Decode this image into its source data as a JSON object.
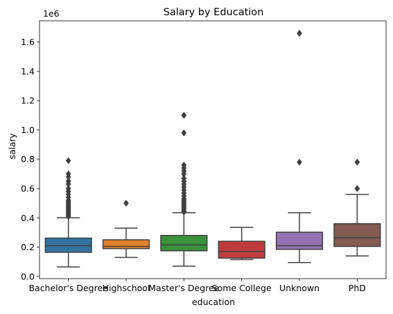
{
  "chart_data": {
    "type": "box",
    "title": "Salary by Education",
    "xlabel": "education",
    "ylabel": "salary",
    "y_offset_label": "1e6",
    "ylim": [
      -0.015,
      1.745
    ],
    "yticks": [
      0.0,
      0.2,
      0.4,
      0.6,
      0.8,
      1.0,
      1.2,
      1.4,
      1.6
    ],
    "ytick_labels": [
      "0.0",
      "0.2",
      "0.4",
      "0.6",
      "0.8",
      "1.0",
      "1.2",
      "1.4",
      "1.6"
    ],
    "grid": false,
    "categories": [
      "Bachelor's Degree",
      "Highschool",
      "Master's Degree",
      "Some College",
      "Unknown",
      "PhD"
    ],
    "colors": [
      "#3274a1",
      "#e1812c",
      "#3a923a",
      "#c03d3e",
      "#9372b2",
      "#845b53"
    ],
    "boxes": [
      {
        "whislo": 0.065,
        "q1": 0.165,
        "med": 0.21,
        "q3": 0.262,
        "whishi": 0.4,
        "fliers": [
          0.41,
          0.42,
          0.43,
          0.44,
          0.45,
          0.46,
          0.47,
          0.48,
          0.49,
          0.5,
          0.51,
          0.52,
          0.54,
          0.56,
          0.58,
          0.6,
          0.63,
          0.65,
          0.68,
          0.7,
          0.79
        ]
      },
      {
        "whislo": 0.13,
        "q1": 0.19,
        "med": 0.205,
        "q3": 0.25,
        "whishi": 0.33,
        "fliers": [
          0.5
        ]
      },
      {
        "whislo": 0.07,
        "q1": 0.175,
        "med": 0.215,
        "q3": 0.28,
        "whishi": 0.435,
        "fliers": [
          0.44,
          0.45,
          0.46,
          0.47,
          0.48,
          0.49,
          0.5,
          0.51,
          0.52,
          0.53,
          0.55,
          0.57,
          0.59,
          0.61,
          0.63,
          0.65,
          0.67,
          0.7,
          0.72,
          0.74,
          0.76,
          0.98,
          1.1
        ]
      },
      {
        "whislo": 0.115,
        "q1": 0.125,
        "med": 0.17,
        "q3": 0.24,
        "whishi": 0.335,
        "fliers": []
      },
      {
        "whislo": 0.095,
        "q1": 0.185,
        "med": 0.21,
        "q3": 0.302,
        "whishi": 0.435,
        "fliers": [
          0.78,
          1.66
        ]
      },
      {
        "whislo": 0.14,
        "q1": 0.205,
        "med": 0.265,
        "q3": 0.36,
        "whishi": 0.56,
        "fliers": [
          0.6,
          0.78
        ]
      }
    ]
  }
}
